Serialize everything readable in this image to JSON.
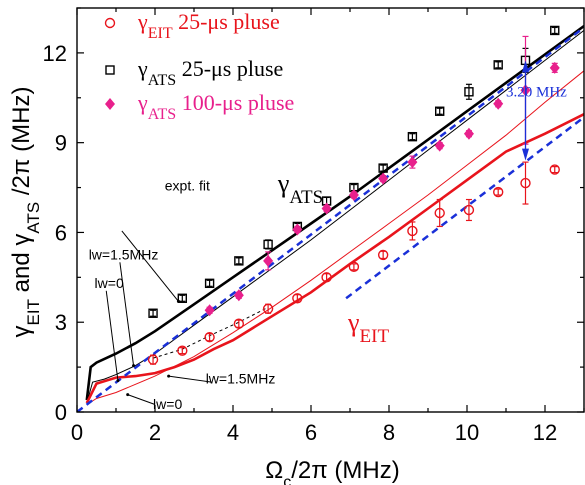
{
  "chart_data": {
    "type": "scatter",
    "title": "",
    "xlabel": "Ω_c/2π (MHz)",
    "ylabel": "γ_EIT and γ_ATS /2π (MHz)",
    "xlim": [
      0,
      13
    ],
    "ylim": [
      0,
      13.5
    ],
    "x_ticks": [
      0,
      2,
      4,
      6,
      8,
      10,
      12
    ],
    "y_ticks": [
      0,
      3,
      6,
      9,
      12
    ],
    "grid": false,
    "legend": {
      "placement": "top-left",
      "entries": [
        {
          "symbol": "γ",
          "sub": "EIT",
          "text": "25-μs pluse",
          "color": "#e8141c",
          "marker": "circle"
        },
        {
          "symbol": "γ",
          "sub": "ATS",
          "text": "25-μs pluse",
          "color": "#000000",
          "marker": "square"
        },
        {
          "symbol": "γ",
          "sub": "ATS",
          "text": "100-μs pluse",
          "color": "#e8208c",
          "marker": "diamond"
        }
      ]
    },
    "series": [
      {
        "name": "γEIT 25-μs pluse",
        "marker": "circle",
        "color": "#e8141c",
        "x": [
          1.95,
          2.7,
          3.4,
          4.15,
          4.9,
          5.65,
          6.4,
          7.1,
          7.85,
          8.6,
          9.3,
          10.05,
          10.8,
          11.5,
          12.25
        ],
        "y": [
          1.75,
          2.05,
          2.5,
          2.95,
          3.45,
          3.8,
          4.5,
          4.85,
          5.25,
          6.05,
          6.65,
          6.75,
          7.35,
          7.65,
          8.1
        ],
        "err": [
          0.15,
          0.1,
          0.12,
          0.12,
          0.15,
          0.12,
          0.12,
          0.1,
          0.12,
          0.3,
          0.45,
          0.35,
          0.1,
          0.7,
          0.1
        ]
      },
      {
        "name": "γATS 25-μs pluse",
        "marker": "square",
        "color": "#000000",
        "x": [
          1.95,
          2.7,
          3.4,
          4.15,
          4.9,
          5.65,
          6.4,
          7.1,
          7.85,
          8.6,
          9.3,
          10.05,
          10.8,
          11.5,
          12.25
        ],
        "y": [
          3.3,
          3.8,
          4.3,
          5.05,
          5.6,
          6.2,
          7.05,
          7.5,
          8.15,
          9.2,
          10.05,
          10.7,
          11.6,
          11.75,
          12.75
        ],
        "err": [
          0.1,
          0.1,
          0.1,
          0.1,
          0.15,
          0.1,
          0.12,
          0.1,
          0.1,
          0.1,
          0.1,
          0.25,
          0.1,
          0.4,
          0.1
        ]
      },
      {
        "name": "γATS 100-μs pluse",
        "marker": "diamond",
        "color": "#e8208c",
        "x": [
          3.4,
          4.15,
          4.9,
          5.65,
          6.4,
          7.1,
          7.85,
          8.6,
          9.3,
          10.05,
          10.8,
          11.5,
          12.25
        ],
        "y": [
          3.4,
          3.9,
          5.05,
          6.1,
          6.8,
          7.25,
          7.8,
          8.35,
          8.9,
          9.3,
          10.3,
          10.75,
          11.5
        ],
        "err": [
          0.1,
          0.1,
          0.3,
          0.1,
          0.1,
          0.1,
          0.1,
          0.2,
          0.1,
          0.1,
          0.1,
          1.8,
          0.15
        ]
      }
    ],
    "curves": [
      {
        "name": "γATS lw=1.5MHz",
        "color": "#000000",
        "width": 2.6,
        "dash": "",
        "x": [
          0.25,
          0.35,
          0.5,
          1.0,
          1.5,
          2,
          3,
          4,
          5,
          6,
          7,
          8,
          9,
          10,
          11,
          12,
          13
        ],
        "y": [
          0.4,
          1.5,
          1.65,
          1.95,
          2.3,
          2.7,
          3.6,
          4.5,
          5.4,
          6.3,
          7.2,
          8.15,
          9.1,
          10.05,
          11.0,
          11.95,
          12.9
        ]
      },
      {
        "name": "γATS lw=0",
        "color": "#000000",
        "width": 1.0,
        "dash": "",
        "x": [
          0.25,
          0.4,
          0.7,
          1.0,
          1.5,
          2,
          3,
          4,
          5,
          6,
          7,
          8,
          9,
          10,
          11,
          12,
          13
        ],
        "y": [
          0.3,
          1.0,
          1.1,
          1.25,
          1.55,
          1.95,
          2.9,
          3.85,
          4.8,
          5.75,
          6.75,
          7.75,
          8.75,
          9.75,
          10.75,
          11.75,
          12.75
        ]
      },
      {
        "name": "γEIT lw=1.5MHz",
        "color": "#e8141c",
        "width": 2.6,
        "dash": "",
        "x": [
          0.25,
          0.5,
          1.0,
          1.5,
          2.0,
          2.5,
          3.0,
          3.5,
          4.0,
          5,
          6,
          7,
          8,
          9,
          10,
          11,
          12,
          13
        ],
        "y": [
          0.3,
          0.95,
          1.15,
          1.2,
          1.3,
          1.5,
          1.75,
          2.1,
          2.4,
          3.2,
          4.0,
          4.95,
          5.85,
          6.8,
          7.75,
          8.7,
          9.3,
          9.95
        ]
      },
      {
        "name": "γEIT lw=0",
        "color": "#e8141c",
        "width": 1.0,
        "dash": "",
        "x": [
          0.25,
          0.5,
          1,
          2,
          3,
          4,
          5,
          6,
          7,
          8,
          9,
          10,
          11,
          12,
          13
        ],
        "y": [
          0.25,
          0.45,
          0.65,
          1.2,
          1.85,
          2.65,
          3.5,
          4.4,
          5.35,
          6.3,
          7.25,
          8.25,
          9.25,
          10.35,
          11.4
        ]
      },
      {
        "name": "expt. fit",
        "color": "#000000",
        "width": 1.0,
        "dash": "3,3",
        "x": [
          1.95,
          2.7,
          3.4,
          4.15,
          4.9
        ],
        "y": [
          1.8,
          2.1,
          2.55,
          3.0,
          3.5
        ]
      },
      {
        "name": "asymptote ATS",
        "color": "#1a30d8",
        "width": 2.5,
        "dash": "7,5",
        "x": [
          0.0,
          13.0
        ],
        "y": [
          0.0,
          12.85
        ]
      },
      {
        "name": "asymptote EIT",
        "color": "#1a30d8",
        "width": 2.5,
        "dash": "7,5",
        "x": [
          6.9,
          13.0
        ],
        "y": [
          3.8,
          9.85
        ]
      }
    ],
    "annotations": [
      {
        "text": "3.20 MHz",
        "color": "#1a30d8",
        "x": 11.0,
        "y": 10.55
      },
      {
        "text": "expt. fit",
        "color": "#000000",
        "x": 2.25,
        "y": 7.4
      },
      {
        "text": "lw=1.5MHz",
        "color": "#000000",
        "x": 0.3,
        "y": 5.1
      },
      {
        "text": "lw=0",
        "color": "#000000",
        "x": 0.45,
        "y": 4.15
      },
      {
        "text": "lw=1.5MHz",
        "color": "#000000",
        "x": 3.3,
        "y": 0.95
      },
      {
        "text": "lw=0",
        "color": "#000000",
        "x": 1.95,
        "y": 0.1
      },
      {
        "text_symbol": "γ",
        "sub": "ATS",
        "color": "#000000",
        "x": 5.15,
        "y": 7.35
      },
      {
        "text_symbol": "γ",
        "sub": "EIT",
        "color": "#e8141c",
        "x": 6.95,
        "y": 2.7
      }
    ]
  }
}
